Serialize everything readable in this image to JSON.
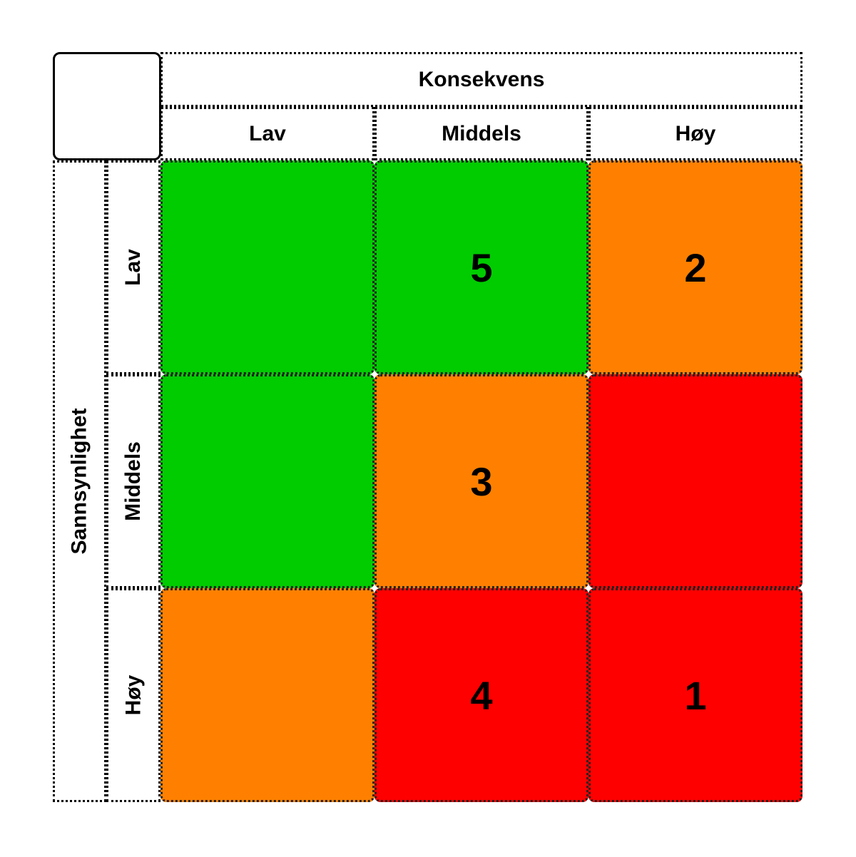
{
  "matrix": {
    "column_title": "Konsekvens",
    "row_title": "Sannsynlighet",
    "columns": [
      "Lav",
      "Middels",
      "Høy"
    ],
    "rows": [
      "Lav",
      "Middels",
      "Høy"
    ],
    "colors": {
      "green": "#00cc00",
      "orange": "#ff8000",
      "red": "#ff0000"
    },
    "cells": [
      [
        {
          "color": "#00cc00",
          "label": ""
        },
        {
          "color": "#00cc00",
          "label": "5"
        },
        {
          "color": "#ff8000",
          "label": "2"
        }
      ],
      [
        {
          "color": "#00cc00",
          "label": ""
        },
        {
          "color": "#ff8000",
          "label": "3"
        },
        {
          "color": "#ff0000",
          "label": ""
        }
      ],
      [
        {
          "color": "#ff8000",
          "label": ""
        },
        {
          "color": "#ff0000",
          "label": "4"
        },
        {
          "color": "#ff0000",
          "label": "1"
        }
      ]
    ]
  }
}
